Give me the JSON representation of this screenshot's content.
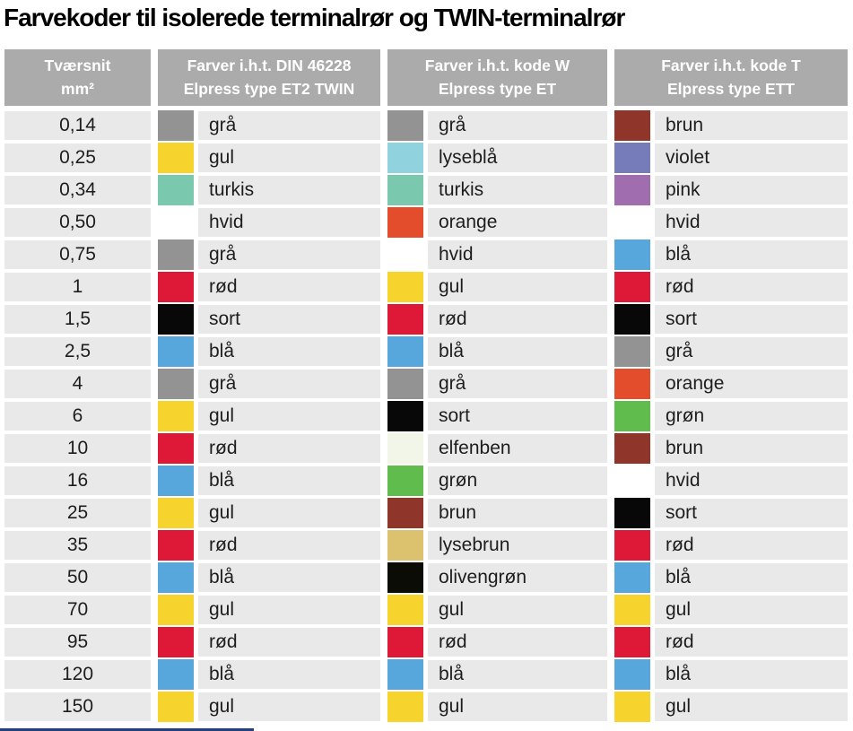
{
  "title": "Farvekoder til isolerede terminalrør og TWIN-terminalrør",
  "palette": {
    "grå": "#939393",
    "gul": "#F6D32D",
    "turkis": "#7AC8AE",
    "hvid": "#FFFFFF",
    "rød": "#DE1837",
    "sort": "#070807",
    "blå": "#57A7DC",
    "lyseblå": "#90D2DE",
    "orange": "#E44D2B",
    "elfenben": "#F2F6E9",
    "grøn": "#5FBC4D",
    "brun": "#90352A",
    "lysebrun": "#DCC26F",
    "olivengrøn": "#0A0C05",
    "violet": "#767BBA",
    "pink": "#A06DAE"
  },
  "ui_colors": {
    "header_bg": "#ABABAB",
    "row_bg": "#E9E9E9",
    "header_text": "#FFFFFF",
    "body_text": "#1D1D1B",
    "bottom_line": "#24407C"
  },
  "table": {
    "headers": [
      {
        "line1": "Tværsnit",
        "line2": "mm²"
      },
      {
        "line1": "Farver i.h.t. DIN 46228",
        "line2": "Elpress type ET2 TWIN"
      },
      {
        "line1": "Farver i.h.t. kode W",
        "line2": "Elpress type ET"
      },
      {
        "line1": "Farver i.h.t. kode T",
        "line2": "Elpress type ETT"
      }
    ],
    "rows": [
      {
        "size": "0,14",
        "colors": [
          "grå",
          "grå",
          "brun"
        ]
      },
      {
        "size": "0,25",
        "colors": [
          "gul",
          "lyseblå",
          "violet"
        ]
      },
      {
        "size": "0,34",
        "colors": [
          "turkis",
          "turkis",
          "pink"
        ]
      },
      {
        "size": "0,50",
        "colors": [
          "hvid",
          "orange",
          "hvid"
        ]
      },
      {
        "size": "0,75",
        "colors": [
          "grå",
          "hvid",
          "blå"
        ]
      },
      {
        "size": "1",
        "colors": [
          "rød",
          "gul",
          "rød"
        ]
      },
      {
        "size": "1,5",
        "colors": [
          "sort",
          "rød",
          "sort"
        ]
      },
      {
        "size": "2,5",
        "colors": [
          "blå",
          "blå",
          "grå"
        ]
      },
      {
        "size": "4",
        "colors": [
          "grå",
          "grå",
          "orange"
        ]
      },
      {
        "size": "6",
        "colors": [
          "gul",
          "sort",
          "grøn"
        ]
      },
      {
        "size": "10",
        "colors": [
          "rød",
          "elfenben",
          "brun"
        ]
      },
      {
        "size": "16",
        "colors": [
          "blå",
          "grøn",
          "hvid"
        ]
      },
      {
        "size": "25",
        "colors": [
          "gul",
          "brun",
          "sort"
        ]
      },
      {
        "size": "35",
        "colors": [
          "rød",
          "lysebrun",
          "rød"
        ]
      },
      {
        "size": "50",
        "colors": [
          "blå",
          "olivengrøn",
          "blå"
        ]
      },
      {
        "size": "70",
        "colors": [
          "gul",
          "gul",
          "gul"
        ]
      },
      {
        "size": "95",
        "colors": [
          "rød",
          "rød",
          "rød"
        ]
      },
      {
        "size": "120",
        "colors": [
          "blå",
          "blå",
          "blå"
        ]
      },
      {
        "size": "150",
        "colors": [
          "gul",
          "gul",
          "gul"
        ]
      }
    ]
  }
}
